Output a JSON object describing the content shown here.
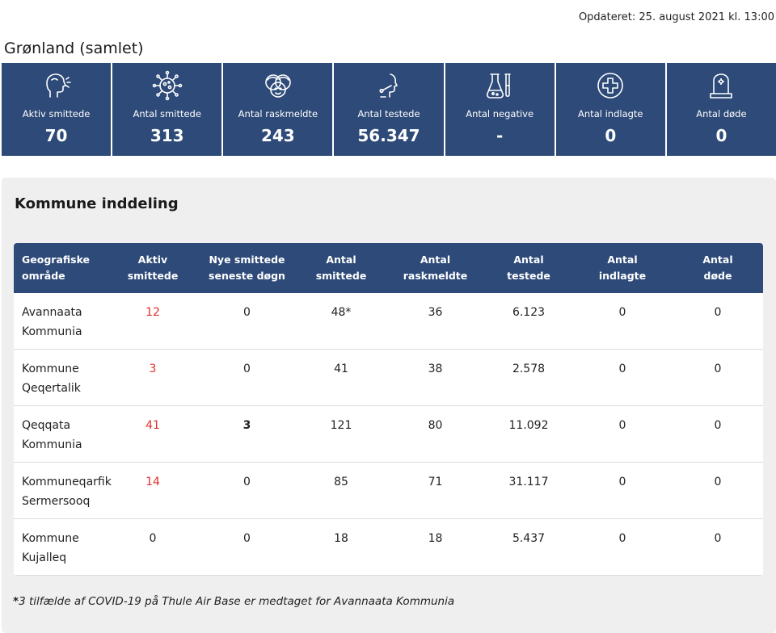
{
  "updated": "Opdateret: 25. august 2021 kl. 13:00",
  "region_title": "Grønland (samlet)",
  "colors": {
    "header_blue": "#2d4a78",
    "active_red": "#e0302a",
    "panel_bg": "#efefef"
  },
  "stats": [
    {
      "icon": "person-coughing-icon",
      "label": "Aktiv smittede",
      "value": "70"
    },
    {
      "icon": "virus-icon",
      "label": "Antal smittede",
      "value": "313"
    },
    {
      "icon": "group-faces-icon",
      "label": "Antal raskmeldte",
      "value": "243"
    },
    {
      "icon": "throat-swab-icon",
      "label": "Antal testede",
      "value": "56.347"
    },
    {
      "icon": "test-tubes-icon",
      "label": "Antal negative",
      "value": "-"
    },
    {
      "icon": "hospital-cross-icon",
      "label": "Antal indlagte",
      "value": "0"
    },
    {
      "icon": "gravestone-icon",
      "label": "Antal døde",
      "value": "0"
    }
  ],
  "panel_title": "Kommune inddeling",
  "table": {
    "headers": [
      [
        "Geografiske",
        "område"
      ],
      [
        "Aktiv",
        "smittede"
      ],
      [
        "Nye smittede",
        "seneste døgn"
      ],
      [
        "Antal",
        "smittede"
      ],
      [
        "Antal",
        "raskmeldte"
      ],
      [
        "Antal",
        "testede"
      ],
      [
        "Antal",
        "indlagte"
      ],
      [
        "Antal",
        "døde"
      ]
    ],
    "rows": [
      {
        "area": [
          "Avannaata",
          "Kommunia"
        ],
        "active": "12",
        "new": "0",
        "infected": "48*",
        "recovered": "36",
        "tested": "6.123",
        "hospitalized": "0",
        "dead": "0"
      },
      {
        "area": [
          "Kommune",
          "Qeqertalik"
        ],
        "active": "3",
        "new": "0",
        "infected": "41",
        "recovered": "38",
        "tested": "2.578",
        "hospitalized": "0",
        "dead": "0"
      },
      {
        "area": [
          "Qeqqata",
          "Kommunia"
        ],
        "active": "41",
        "new": "3",
        "infected": "121",
        "recovered": "80",
        "tested": "11.092",
        "hospitalized": "0",
        "dead": "0"
      },
      {
        "area": [
          "Kommuneqarfik",
          "Sermersooq"
        ],
        "active": "14",
        "new": "0",
        "infected": "85",
        "recovered": "71",
        "tested": "31.117",
        "hospitalized": "0",
        "dead": "0"
      },
      {
        "area": [
          "Kommune",
          "Kujalleq"
        ],
        "active": "0",
        "new": "0",
        "infected": "18",
        "recovered": "18",
        "tested": "5.437",
        "hospitalized": "0",
        "dead": "0"
      }
    ]
  },
  "footnote": {
    "star": "*",
    "text": "3 tilfælde af COVID-19 på Thule Air Base er medtaget for Avannaata Kommunia"
  }
}
